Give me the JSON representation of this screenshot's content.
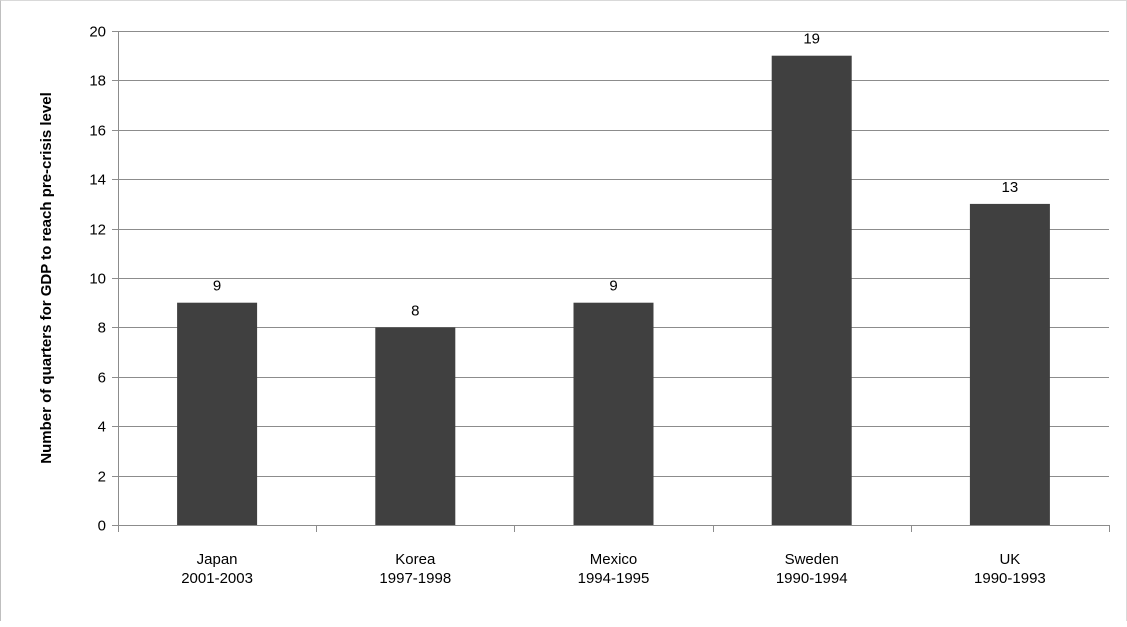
{
  "chart_data": {
    "type": "bar",
    "title": "",
    "xlabel": "",
    "ylabel": "Number of quarters for GDP to reach pre-crisis level",
    "categories": [
      [
        "Japan",
        "2001-2003"
      ],
      [
        "Korea",
        "1997-1998"
      ],
      [
        "Mexico",
        "1994-1995"
      ],
      [
        "Sweden",
        "1990-1994"
      ],
      [
        "UK",
        "1990-1993"
      ]
    ],
    "values": [
      9,
      8,
      9,
      19,
      13
    ],
    "data_labels": [
      "9",
      "8",
      "9",
      "19",
      "13"
    ],
    "ylim": [
      0,
      20
    ],
    "yticks": [
      "0",
      "2",
      "4",
      "6",
      "8",
      "10",
      "12",
      "14",
      "16",
      "18",
      "20"
    ],
    "grid": true,
    "legend": "none",
    "colors": {
      "bar": "#404040",
      "grid": "#8c8c8c",
      "axis": "#8c8c8c"
    }
  }
}
